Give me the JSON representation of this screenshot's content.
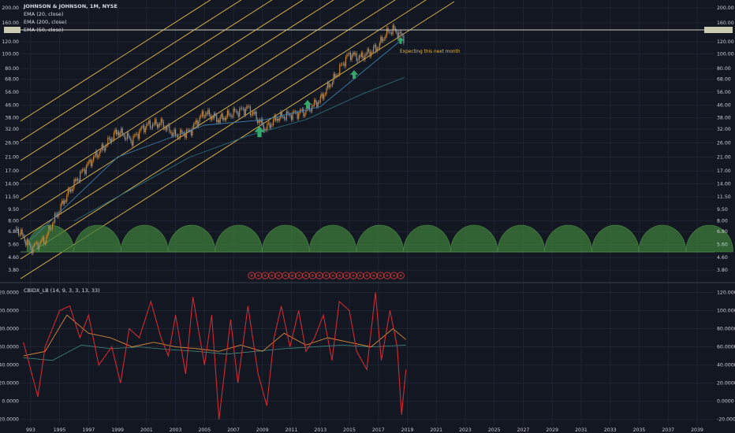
{
  "header": {
    "title": "JOHNSON & JOHNSON, 1M, NYSE",
    "studies": [
      "EMA (20, close)",
      "EMA (200, close)",
      "EMA (50, close)"
    ]
  },
  "oscillator": {
    "label": "CBIDX_LB (14, 9, 3, 3, 13, 33)"
  },
  "annotations": {
    "note": "Expecting this next month"
  },
  "colors": {
    "background": "#131722",
    "price_up": "#c9842e",
    "price_down": "#8a8f99",
    "channel": "#e0b84a",
    "ema20": "#3e7aa8",
    "ema50": "#2c6d7a",
    "arrow": "#34a86b",
    "cycle_fill": "#3e7c3a",
    "osc_main": "#d12a33",
    "osc_slow": "#d78a3c",
    "osc_fast": "#3f8b7f"
  },
  "chart_data": [
    {
      "type": "line",
      "panel": "price",
      "scale": "log",
      "y_ticks": [
        "200.00",
        "160.00",
        "120.00",
        "100.00",
        "80.00",
        "68.00",
        "56.00",
        "46.00",
        "38.00",
        "32.00",
        "26.00",
        "21.00",
        "17.00",
        "14.00",
        "11.50",
        "9.50",
        "8.00",
        "6.80",
        "5.60",
        "4.60",
        "3.80"
      ],
      "y_tick_values": [
        200,
        160,
        120,
        100,
        80,
        68,
        56,
        46,
        38,
        32,
        26,
        21,
        17,
        14,
        11.5,
        9.5,
        8,
        6.8,
        5.6,
        4.6,
        3.8
      ],
      "ylim": [
        3.3,
        205
      ],
      "x_ticks": [
        "993",
        "1995",
        "1997",
        "1999",
        "2001",
        "2003",
        "2005",
        "2007",
        "2009",
        "2011",
        "2013",
        "2015",
        "2017",
        "2019",
        "2021",
        "2023",
        "2025",
        "2027",
        "2029",
        "2031",
        "2033",
        "2035",
        "2037",
        "2039"
      ],
      "x_tick_values": [
        1993,
        1995,
        1997,
        1999,
        2001,
        2003,
        2005,
        2007,
        2009,
        2011,
        2013,
        2015,
        2017,
        2019,
        2021,
        2023,
        2025,
        2027,
        2029,
        2031,
        2033,
        2035,
        2037,
        2039
      ],
      "xlim": [
        1992.3,
        2040.2
      ],
      "series": [
        {
          "x": [
            1992.0,
            1993.0,
            1994.0,
            1995.0,
            1996.0,
            1997.0,
            1998.0,
            1999.0,
            2000.0,
            2000.5,
            2001.0,
            2002.0,
            2003.0,
            2004.0,
            2005.0,
            2006.0,
            2007.0,
            2008.0,
            2009.2,
            2010.0,
            2011.0,
            2012.0,
            2013.0,
            2014.0,
            2015.0,
            2015.7,
            2016.5,
            2017.0,
            2017.5,
            2018.0,
            2018.8
          ],
          "y": [
            7.2,
            5.3,
            6.0,
            9.5,
            14.0,
            19.0,
            24.0,
            31.0,
            27.0,
            31.0,
            34.0,
            35.0,
            29.0,
            31.0,
            41.0,
            37.0,
            41.0,
            44.0,
            32.0,
            38.0,
            40.0,
            42.0,
            50.0,
            70.0,
            100.0,
            94.0,
            104.0,
            112.0,
            135.0,
            145.0,
            126.0
          ]
        },
        {
          "x": [
            1993.0,
            1999.0,
            2005.0,
            2009.2,
            2013.0,
            2018.8
          ],
          "y": [
            6.0,
            21.0,
            34.0,
            37.0,
            45.0,
            128.0
          ]
        },
        {
          "x": [
            1996.0,
            2000.0,
            2004.0,
            2008.0,
            2012.0,
            2016.0,
            2018.8
          ],
          "y": [
            8.0,
            13.0,
            21.0,
            29.0,
            37.0,
            55.0,
            70.0
          ]
        }
      ]
    },
    {
      "type": "line",
      "panel": "oscillator",
      "y_ticks": [
        "120.0000",
        "100.0000",
        "80.0000",
        "60.0000",
        "40.0000",
        "20.0000",
        "0.0000",
        "-20.0000"
      ],
      "y_tick_values": [
        120,
        100,
        80,
        60,
        40,
        20,
        0,
        -20
      ],
      "ylim": [
        -22,
        123
      ],
      "xlim": [
        1992.3,
        2040.2
      ],
      "series": [
        {
          "x": [
            1992.5,
            1993.5,
            1994.0,
            1995.0,
            1995.7,
            1996.4,
            1997.0,
            1997.7,
            1998.6,
            1999.2,
            1999.8,
            2000.5,
            2001.3,
            2002.0,
            2002.5,
            2003.0,
            2003.7,
            2004.2,
            2005.0,
            2005.5,
            2006.0,
            2006.8,
            2007.3,
            2008.0,
            2008.7,
            2009.3,
            2009.8,
            2010.3,
            2010.9,
            2011.5,
            2012.0,
            2012.6,
            2013.2,
            2013.8,
            2014.3,
            2015.0,
            2015.5,
            2016.2,
            2016.8,
            2017.2,
            2017.8,
            2018.3,
            2018.6,
            2018.9
          ],
          "y": [
            65,
            5,
            60,
            100,
            105,
            70,
            95,
            40,
            60,
            20,
            80,
            70,
            110,
            70,
            50,
            95,
            30,
            115,
            40,
            95,
            -20,
            90,
            20,
            105,
            30,
            -5,
            70,
            105,
            60,
            100,
            55,
            70,
            95,
            45,
            110,
            100,
            55,
            35,
            120,
            45,
            100,
            60,
            -15,
            35
          ]
        },
        {
          "x": [
            1992.5,
            1994.0,
            1995.5,
            1997.0,
            1998.5,
            2000.0,
            2001.5,
            2003.0,
            2004.5,
            2006.0,
            2007.5,
            2009.0,
            2010.5,
            2012.0,
            2013.5,
            2015.0,
            2016.5,
            2018.0,
            2018.9
          ],
          "y": [
            50,
            55,
            95,
            75,
            70,
            60,
            65,
            60,
            58,
            55,
            62,
            55,
            75,
            62,
            70,
            65,
            60,
            80,
            68
          ]
        },
        {
          "x": [
            1992.5,
            1994.5,
            1996.5,
            1998.5,
            2000.5,
            2002.5,
            2004.5,
            2006.5,
            2008.5,
            2010.5,
            2012.5,
            2014.5,
            2016.5,
            2018.9
          ],
          "y": [
            48,
            45,
            62,
            58,
            60,
            57,
            55,
            52,
            55,
            58,
            60,
            62,
            60,
            62
          ]
        }
      ]
    }
  ]
}
